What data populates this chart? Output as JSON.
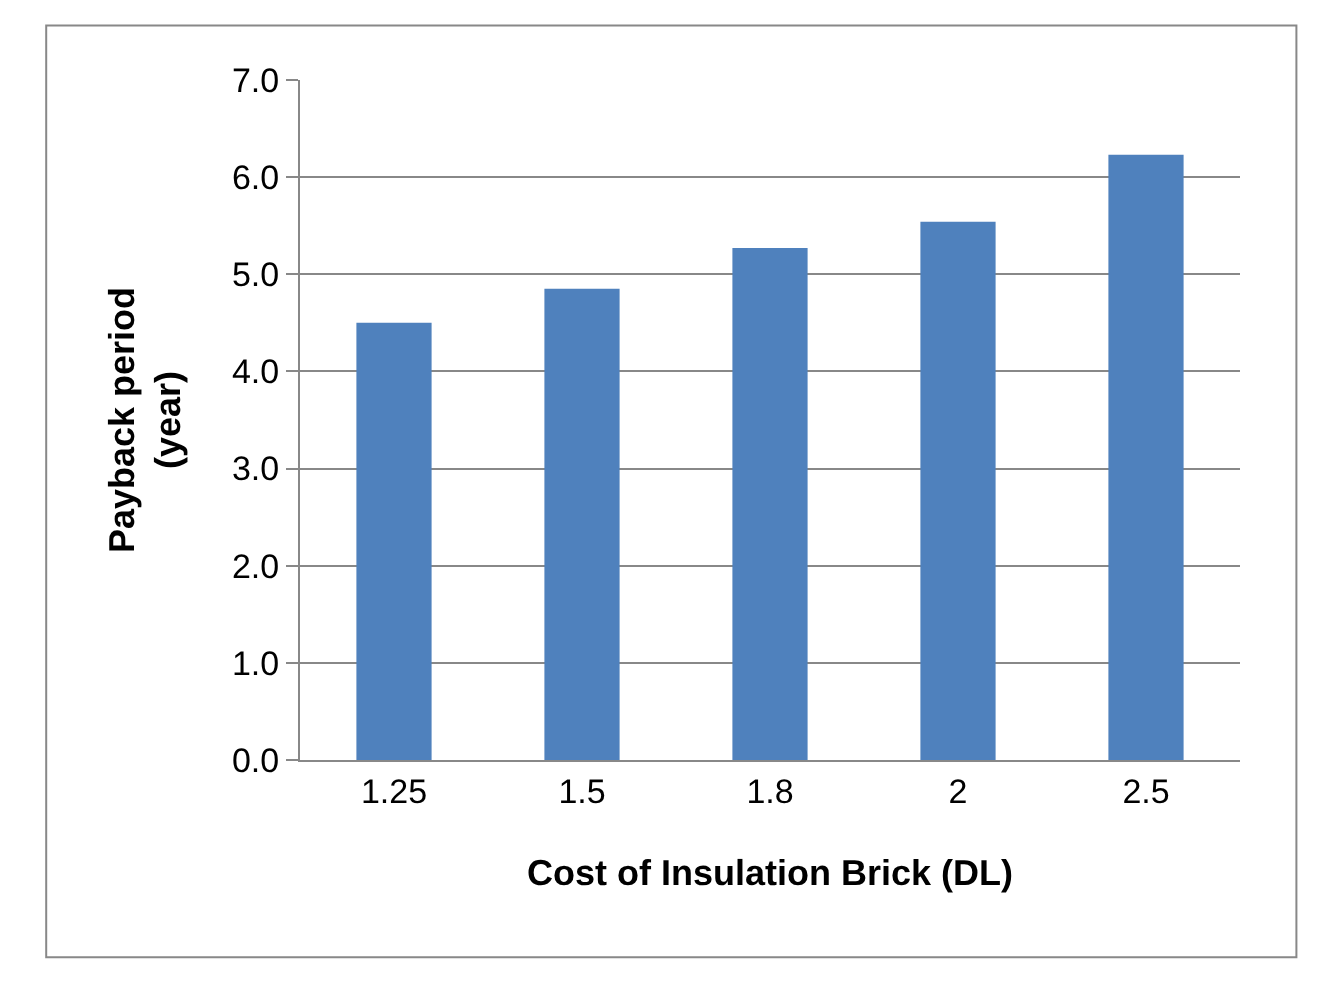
{
  "chart_data": {
    "type": "bar",
    "xlabel": "Cost of Insulation Brick (DL)",
    "ylabel": "Payback period\n(year)",
    "categories": [
      "1.25",
      "1.5",
      "1.8",
      "2",
      "2.5"
    ],
    "values": [
      4.5,
      4.85,
      5.27,
      5.54,
      6.23
    ],
    "color": "#4f81bd",
    "ylim": [
      0,
      7
    ],
    "yticks": [
      {
        "value": 0,
        "label": "0.0"
      },
      {
        "value": 1,
        "label": "1.0"
      },
      {
        "value": 2,
        "label": "2.0"
      },
      {
        "value": 3,
        "label": "3.0"
      },
      {
        "value": 4,
        "label": "4.0"
      },
      {
        "value": 5,
        "label": "5.0"
      },
      {
        "value": 6,
        "label": "6.0"
      },
      {
        "value": 7,
        "label": "7.0"
      }
    ],
    "grid": "y"
  }
}
